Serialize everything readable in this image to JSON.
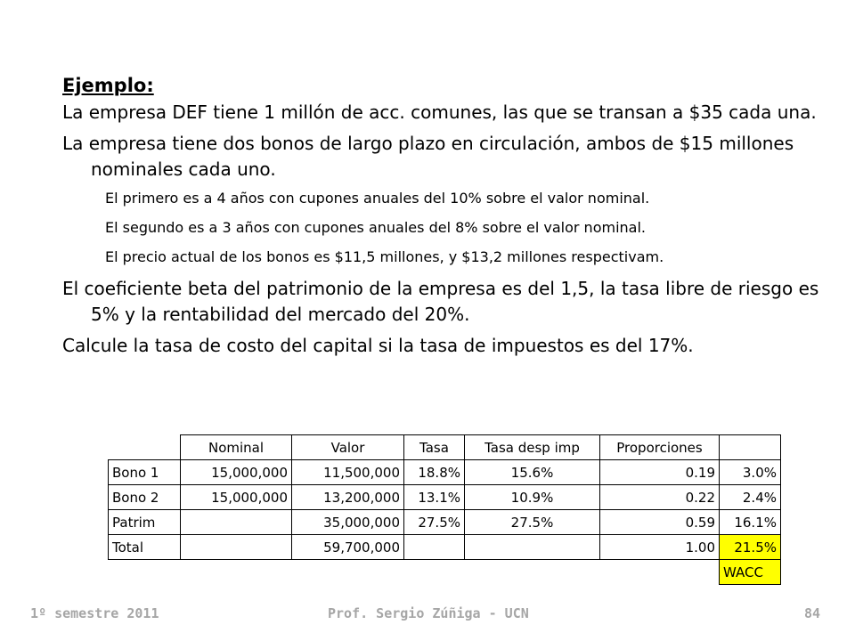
{
  "slide": {
    "heading": "Ejemplo:",
    "paragraphs": [
      "La empresa DEF tiene 1 millón de acc. comunes, las que se transan a $35 cada una.",
      "La empresa tiene dos bonos de largo plazo en circulación, ambos de $15 millones nominales cada uno."
    ],
    "sub_items": [
      "El primero es a 4 años con cupones anuales del 10% sobre el valor nominal.",
      "El segundo es a 3 años con cupones anuales del 8% sobre el valor nominal.",
      "El precio actual de los bonos es $11,5 millones, y $13,2 millones respectivam."
    ],
    "paragraphs2": [
      "El coeficiente beta del patrimonio de la empresa es del 1,5, la tasa libre de riesgo es 5% y la rentabilidad del mercado del 20%.",
      "Calcule la tasa de costo del capital si la tasa de impuestos es del 17%."
    ]
  },
  "table": {
    "headers": [
      "",
      "Nominal",
      "Valor",
      "Tasa",
      "Tasa desp imp",
      "Proporciones",
      ""
    ],
    "rows": [
      [
        "Bono 1",
        "15,000,000",
        "11,500,000",
        "18.8%",
        "15.6%",
        "0.19",
        "3.0%"
      ],
      [
        "Bono 2",
        "15,000,000",
        "13,200,000",
        "13.1%",
        "10.9%",
        "0.22",
        "2.4%"
      ],
      [
        "Patrim",
        "",
        "35,000,000",
        "27.5%",
        "27.5%",
        "0.59",
        "16.1%"
      ],
      [
        "Total",
        "",
        "59,700,000",
        "",
        "",
        "1.00",
        "21.5%"
      ]
    ],
    "wacc_label": "WACC",
    "highlight_color": "#ffff00"
  },
  "footer": {
    "left": "1º semestre 2011",
    "center": "Prof. Sergio Zúñiga - UCN",
    "page_number": "84"
  }
}
